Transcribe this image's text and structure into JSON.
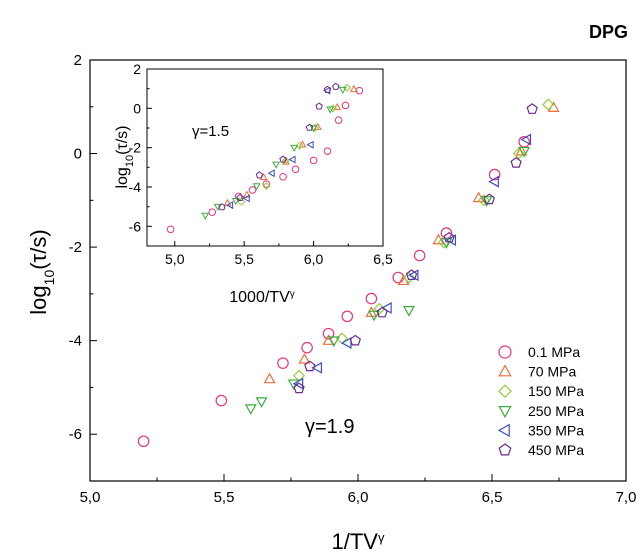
{
  "chart_data": [
    {
      "type": "scatter",
      "title": "DPG",
      "xlabel": "1/TV",
      "xlabel_sup": "γ",
      "ylabel": "log",
      "ylabel_sub": "10",
      "ylabel_rest": "(τ/s)",
      "annotation": "γ=1.9",
      "xlim": [
        5.0,
        7.0
      ],
      "ylim": [
        -7,
        2
      ],
      "xticks": [
        "5,0",
        "5,5",
        "6,0",
        "6,5",
        "7,0"
      ],
      "yticks": [
        "-6",
        "-4",
        "-2",
        "0",
        "2"
      ],
      "legend_position": "bottom-right",
      "series": [
        {
          "name": "0.1 MPa",
          "marker": "circle",
          "color": "#e8357a",
          "x": [
            5.2,
            5.49,
            5.72,
            5.81,
            5.89,
            5.96,
            6.05,
            6.15,
            6.23,
            6.33,
            6.51,
            6.62
          ],
          "y": [
            -6.15,
            -5.28,
            -4.48,
            -4.15,
            -3.85,
            -3.48,
            -3.1,
            -2.65,
            -2.18,
            -1.7,
            -0.45,
            0.25
          ]
        },
        {
          "name": "70 MPa",
          "marker": "triangle-up",
          "color": "#f26b3a",
          "x": [
            5.67,
            5.8,
            5.89,
            6.05,
            6.17,
            6.3,
            6.45,
            6.61,
            6.73
          ],
          "y": [
            -4.82,
            -4.4,
            -4.0,
            -3.4,
            -2.72,
            -1.85,
            -0.95,
            0.05,
            0.98
          ]
        },
        {
          "name": "150 MPa",
          "marker": "diamond",
          "color": "#8fce3b",
          "x": [
            5.78,
            5.94,
            6.08,
            6.19,
            6.32,
            6.47,
            6.6,
            6.71
          ],
          "y": [
            -4.75,
            -3.95,
            -3.32,
            -2.65,
            -1.9,
            -1.0,
            0.0,
            1.05
          ]
        },
        {
          "name": "250 MPa",
          "marker": "triangle-down",
          "color": "#3aae3a",
          "x": [
            5.6,
            5.64,
            5.76,
            5.91,
            6.06,
            6.19,
            6.33,
            6.48,
            6.62
          ],
          "y": [
            -5.45,
            -5.3,
            -4.92,
            -4.0,
            -3.45,
            -3.35,
            -1.9,
            -1.0,
            0.05
          ]
        },
        {
          "name": "350 MPa",
          "marker": "triangle-left",
          "color": "#3a4fbf",
          "x": [
            5.78,
            5.85,
            5.96,
            6.11,
            6.21,
            6.35,
            6.51,
            6.63
          ],
          "y": [
            -4.92,
            -4.58,
            -4.05,
            -3.3,
            -2.6,
            -1.85,
            -0.6,
            0.3
          ]
        },
        {
          "name": "450 MPa",
          "marker": "pentagon",
          "color": "#6a2a8f",
          "x": [
            5.78,
            5.82,
            5.99,
            6.09,
            6.2,
            6.34,
            6.49,
            6.59,
            6.65
          ],
          "y": [
            -5.02,
            -4.55,
            -4.0,
            -3.4,
            -2.6,
            -1.8,
            -0.98,
            -0.2,
            0.95
          ]
        }
      ]
    },
    {
      "type": "scatter",
      "title": "",
      "xlabel": "1000/TV",
      "xlabel_sup": "γ",
      "ylabel": "log",
      "ylabel_sub": "10",
      "ylabel_rest": "(τ/s)",
      "annotation": "γ=1.5",
      "xlim": [
        4.8,
        6.5
      ],
      "ylim": [
        -7,
        2
      ],
      "xticks": [
        "5,0",
        "5,5",
        "6,0",
        "6,5"
      ],
      "yticks": [
        "-6",
        "-4",
        "-2",
        "0",
        "2"
      ],
      "series": [
        {
          "name": "0.1 MPa",
          "marker": "circle",
          "color": "#e8357a",
          "x": [
            4.97,
            5.27,
            5.46,
            5.56,
            5.66,
            5.78,
            5.87,
            6.0,
            6.1,
            6.18,
            6.23,
            6.33
          ],
          "y": [
            -6.15,
            -5.28,
            -4.48,
            -4.15,
            -3.85,
            -3.48,
            -3.1,
            -2.65,
            -2.18,
            -0.6,
            0.15,
            0.9
          ]
        },
        {
          "name": "70 MPa",
          "marker": "triangle-up",
          "color": "#f26b3a",
          "x": [
            5.38,
            5.52,
            5.64,
            5.8,
            5.92,
            6.03,
            6.17,
            6.29
          ],
          "y": [
            -4.82,
            -4.4,
            -3.5,
            -2.72,
            -1.85,
            -0.95,
            0.05,
            0.98
          ]
        },
        {
          "name": "150 MPa",
          "marker": "diamond",
          "color": "#8fce3b",
          "x": [
            5.48,
            5.66,
            5.8,
            5.9,
            6.01,
            6.14,
            6.24
          ],
          "y": [
            -4.75,
            -3.95,
            -2.65,
            -1.9,
            -1.0,
            0.0,
            1.05
          ]
        },
        {
          "name": "250 MPa",
          "marker": "triangle-down",
          "color": "#3aae3a",
          "x": [
            5.22,
            5.31,
            5.44,
            5.59,
            5.73,
            5.86,
            6.0,
            6.12,
            6.21
          ],
          "y": [
            -5.45,
            -5.0,
            -4.7,
            -3.95,
            -2.85,
            -2.0,
            -1.0,
            -0.05,
            0.95
          ]
        },
        {
          "name": "350 MPa",
          "marker": "triangle-left",
          "color": "#3a4fbf",
          "x": [
            5.4,
            5.52,
            5.7,
            5.85,
            5.98,
            6.1
          ],
          "y": [
            -4.92,
            -4.58,
            -3.3,
            -2.6,
            -1.85,
            0.9
          ]
        },
        {
          "name": "450 MPa",
          "marker": "pentagon",
          "color": "#6a2a8f",
          "x": [
            5.34,
            5.47,
            5.61,
            5.78,
            5.97,
            6.04,
            6.1,
            6.16
          ],
          "y": [
            -5.02,
            -4.55,
            -3.4,
            -2.6,
            -0.98,
            0.1,
            0.95,
            1.1
          ]
        }
      ]
    }
  ]
}
